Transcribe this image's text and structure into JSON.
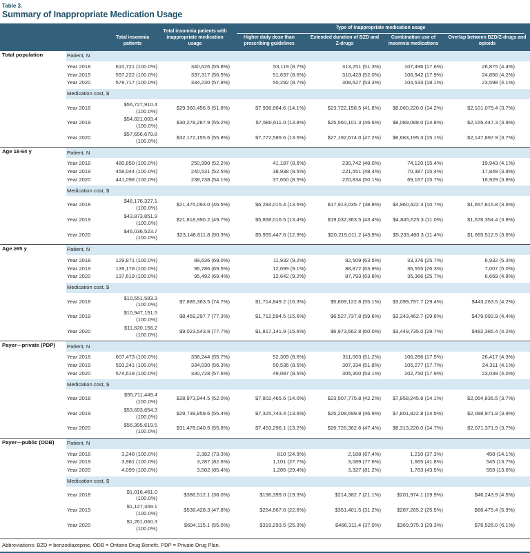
{
  "table_label": "Table 3.",
  "title": "Summary of Inappropriate Medication Usage",
  "colors": {
    "header_bg": "#33617c",
    "band_bg": "#d6e8f2",
    "title_text": "#1d4f68"
  },
  "header": {
    "col_total": "Total insomnia patients",
    "col_inappropriate": "Total insomnia patients with inappropriate medication usage",
    "group": "Type of inappropriate medication usage",
    "subcols": [
      "Higher daily dose than prescribing guidelines",
      "Extended duration of BZD and Z-drugs",
      "Combination use of insomnia medications",
      "Overlap between BZD/Z-drugs and opioids"
    ]
  },
  "sections": [
    {
      "label": "Total population",
      "blocks": [
        {
          "sub": "Patient, N",
          "rows": [
            {
              "year": "Year 2018",
              "values": [
                "610,721 (100.0%)",
                "340,626 (55.8%)",
                "53,119 (8.7%)",
                "313,251 (51.3%)",
                "107,496 (17.6%)",
                "26,875 (4.4%)"
              ]
            },
            {
              "year": "Year 2019",
              "values": [
                "597,222 (100.0%)",
                "337,317 (56.5%)",
                "51,637 (8.6%)",
                "310,423 (52.0%)",
                "106,942 (17.9%)",
                "24,856 (4.2%)"
              ]
            },
            {
              "year": "Year 2020",
              "values": [
                "578,717 (100.0%)",
                "334,230 (57.8%)",
                "50,292 (8.7%)",
                "308,627 (53.3%)",
                "104,533 (18.1%)",
                "23,598 (4.1%)"
              ]
            }
          ]
        },
        {
          "sub": "Medication cost, $",
          "rows": [
            {
              "year": "Year 2018",
              "values": [
                "$56,727,910.4 (100.0%)",
                "$29,360,456.5 (51.8%)",
                "$7,998,864.6 (14.1%)",
                "$23,722,158.5 (41.8%)",
                "$8,060,220.0 (14.2%)",
                "$2,101,079.4 (3.7%)"
              ]
            },
            {
              "year": "Year 2019",
              "values": [
                "$54,821,003.4 (100.0%)",
                "$30,278,287.9 (55.2%)",
                "$7,580,611.0 (13.8%)",
                "$25,560,101.3 (46.6%)",
                "$8,089,088.0 (14.8%)",
                "$2,155,447.3 (3.9%)"
              ]
            },
            {
              "year": "Year 2020",
              "values": [
                "$57,656,679.8 (100.0%)",
                "$32,172,155.6 (55.8%)",
                "$7,772,589.6 (13.5%)",
                "$27,192,674.0 (47.2%)",
                "$8,683,195.3 (15.1%)",
                "$2,147,897.9 (3.7%)"
              ]
            }
          ]
        }
      ]
    },
    {
      "label": "Age 18-64 y",
      "blocks": [
        {
          "sub": "Patient, N",
          "rows": [
            {
              "year": "Year 2018",
              "values": [
                "480,850 (100.0%)",
                "250,990 (52.2%)",
                "41,187 (8.6%)",
                "230,742 (48.0%)",
                "74,120 (15.4%)",
                "19,943 (4.1%)"
              ]
            },
            {
              "year": "Year 2019",
              "values": [
                "458,044 (100.0%)",
                "240,531 (52.5%)",
                "38,938 (8.5%)",
                "221,551 (48.4%)",
                "70,387 (15.4%)",
                "17,849 (3.9%)"
              ]
            },
            {
              "year": "Year 2020",
              "values": [
                "441,098 (100.0%)",
                "238,738 (54.1%)",
                "37,650 (8.5%)",
                "220,834 (50.1%)",
                "69,167 (15.7%)",
                "16,929 (3.8%)"
              ]
            }
          ]
        },
        {
          "sub": "Medication cost, $",
          "rows": [
            {
              "year": "Year 2018",
              "values": [
                "$46,176,327.1 (100.0%)",
                "$21,475,093.0 (46.5%)",
                "$6,284,015.4 (13.6%)",
                "$17,913,035.7 (38.8%)",
                "$4,960,422.3 (10.7%)",
                "$1,657,815.8 (3.6%)"
              ]
            },
            {
              "year": "Year 2019",
              "values": [
                "$43,873,851.9 (100.0%)",
                "$21,818,990.2 (49.7%)",
                "$5,868,016.5 (13.4%)",
                "$19,032,363.5 (43.4%)",
                "$4,845,625.3 (11.0%)",
                "$1,676,354.4 (3.8%)"
              ]
            },
            {
              "year": "Year 2020",
              "values": [
                "$46,036,523.7 (100.0%)",
                "$23,148,611.8 (50.3%)",
                "$5,955,447.6 (12.9%)",
                "$20,219,011.2 (43.9%)",
                "$5,233,460.3 (11.4%)",
                "$1,665,512.5 (3.6%)"
              ]
            }
          ]
        }
      ]
    },
    {
      "label": "Age ≥65 y",
      "blocks": [
        {
          "sub": "Patient, N",
          "rows": [
            {
              "year": "Year 2018",
              "values": [
                "129,871 (100.0%)",
                "89,636 (69.0%)",
                "11,932 (9.2%)",
                "82,509 (63.5%)",
                "33,376 (25.7%)",
                "6,932 (5.3%)"
              ]
            },
            {
              "year": "Year 2019",
              "values": [
                "139,178 (100.0%)",
                "96,786 (69.5%)",
                "12,699 (9.1%)",
                "88,872 (63.9%)",
                "36,555 (26.3%)",
                "7,007 (5.0%)"
              ]
            },
            {
              "year": "Year 2020",
              "values": [
                "137,619 (100.0%)",
                "95,492 (69.4%)",
                "12,642 (9.2%)",
                "87,793 (63.8%)",
                "35,366 (25.7%)",
                "6,669 (4.8%)"
              ]
            }
          ]
        },
        {
          "sub": "Medication cost, $",
          "rows": [
            {
              "year": "Year 2018",
              "values": [
                "$10,551,583.3 (100.0%)",
                "$7,885,363.5 (74.7%)",
                "$1,714,849.2 (16.3%)",
                "$5,809,122.8 (55.1%)",
                "$3,099,797.7 (29.4%)",
                "$443,263.5 (4.2%)"
              ]
            },
            {
              "year": "Year 2019",
              "values": [
                "$10,947,151.5 (100.0%)",
                "$8,459,297.7 (77.3%)",
                "$1,712,594.5 (15.6%)",
                "$6,527,737.8 (59.6%)",
                "$3,243,462.7 (29.6%)",
                "$479,092.9 (4.4%)"
              ]
            },
            {
              "year": "Year 2020",
              "values": [
                "$11,620,156.2 (100.0%)",
                "$9,023,543.8 (77.7%)",
                "$1,817,141.9 (15.6%)",
                "$6,973,662.8 (60.0%)",
                "$3,449,735.0 (29.7%)",
                "$482,385.4 (4.2%)"
              ]
            }
          ]
        }
      ]
    },
    {
      "label": "Payer—private (PDP)",
      "blocks": [
        {
          "sub": "Patient, N",
          "rows": [
            {
              "year": "Year 2018",
              "values": [
                "607,473 (100.0%)",
                "338,244 (55.7%)",
                "52,309 (8.6%)",
                "311,063 (51.2%)",
                "106,286 (17.5%)",
                "26,417 (4.3%)"
              ]
            },
            {
              "year": "Year 2019",
              "values": [
                "593,241 (100.0%)",
                "334,030 (56.3%)",
                "50,536 (8.5%)",
                "307,334 (51.8%)",
                "105,277 (17.7%)",
                "24,311 (4.1%)"
              ]
            },
            {
              "year": "Year 2020",
              "values": [
                "574,618 (100.0%)",
                "330,728 (57.6%)",
                "49,087 (8.5%)",
                "305,300 (53.1%)",
                "102,750 (17.9%)",
                "23,039 (4.0%)"
              ]
            }
          ]
        },
        {
          "sub": "Medication cost, $",
          "rows": [
            {
              "year": "Year 2018",
              "values": [
                "$55,711,449.4 (100.0%)",
                "$28,973,944.5 (52.0%)",
                "$7,802,465.6 (14.0%)",
                "$23,507,775.8 (42.2%)",
                "$7,858,245.8 (14.1%)",
                "$2,054,835.5 (3.7%)"
              ]
            },
            {
              "year": "Year 2019",
              "values": [
                "$53,693,654.3 (100.0%)",
                "$29,739,859.6 (55.4%)",
                "$7,325,743.4 (13.6%)",
                "$25,208,699.8 (46.9%)",
                "$7,801,822.8 (14.5%)",
                "$2,088,971.9 (3.9%)"
              ]
            },
            {
              "year": "Year 2020",
              "values": [
                "$56,395,619.5 (100.0%)",
                "$31,478,040.5 (55.8%)",
                "$7,453,296.1 (13.2%)",
                "$26,726,362.6 (47.4%)",
                "$8,313,220.0 (14.7%)",
                "$2,071,371.9 (3.7%)"
              ]
            }
          ]
        }
      ]
    },
    {
      "label": "Payer—public (ODB)",
      "blocks": [
        {
          "sub": "Patient, N",
          "rows": [
            {
              "year": "Year 2018",
              "values": [
                "3,248 (100.0%)",
                "2,382 (73.3%)",
                "810 (24.9%)",
                "2,188 (67.4%)",
                "1,210 (37.3%)",
                "458 (14.1%)"
              ]
            },
            {
              "year": "Year 2019",
              "values": [
                "3,981 (100.0%)",
                "3,287 (82.6%)",
                "1,101 (27.7%)",
                "3,089 (77.6%)",
                "1,665 (41.8%)",
                "545 (13.7%)"
              ]
            },
            {
              "year": "Year 2020",
              "values": [
                "4,099 (100.0%)",
                "3,502 (85.4%)",
                "1,205 (29.4%)",
                "3,327 (81.2%)",
                "1,783 (43.5%)",
                "559 (13.6%)"
              ]
            }
          ]
        },
        {
          "sub": "Medication cost, $",
          "rows": [
            {
              "year": "Year 2018",
              "values": [
                "$1,016,461.0 (100.0%)",
                "$386,512.1 (38.0%)",
                "$196,399.0 (19.3%)",
                "$214,382.7 (21.1%)",
                "$201,974.1 (19.9%)",
                "$46,243.9 (4.5%)"
              ]
            },
            {
              "year": "Year 2019",
              "values": [
                "$1,127,349.1 (100.0%)",
                "$538,428.3 (47.8%)",
                "$254,867.6 (22.6%)",
                "$351,401.5 (31.2%)",
                "$287,265.2 (25.5%)",
                "$66,475.4 (5.9%)"
              ]
            },
            {
              "year": "Year 2020",
              "values": [
                "$1,261,060.3 (100.0%)",
                "$694,115.1 (55.0%)",
                "$319,293.5 (25.3%)",
                "$466,311.4 (37.0%)",
                "$369,975.3 (29.3%)",
                "$76,526.0 (6.1%)"
              ]
            }
          ]
        }
      ]
    }
  ],
  "footnote": "Abbreviations: BZD = benzodiazepine, ODB = Ontario Drug Benefit, PDP = Private Drug Plan."
}
